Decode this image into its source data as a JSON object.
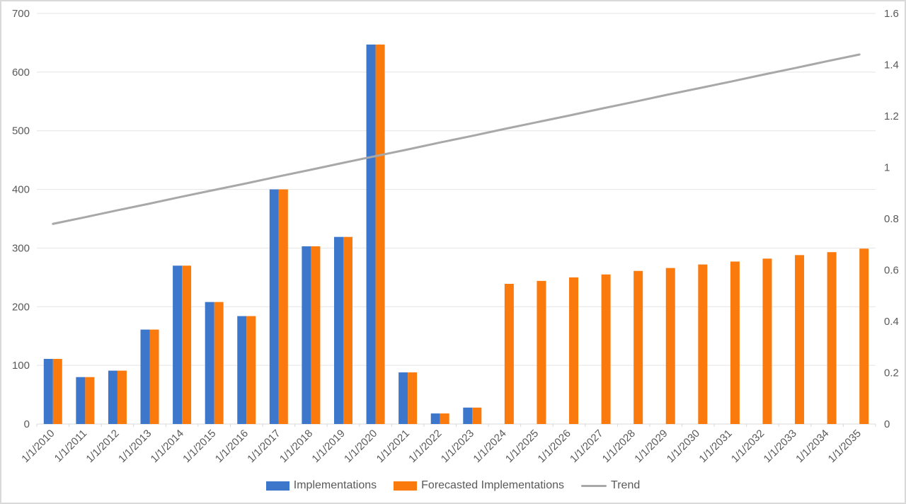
{
  "chart_data": {
    "type": "bar",
    "title": "",
    "categories": [
      "1/1/2010",
      "1/1/2011",
      "1/1/2012",
      "1/1/2013",
      "1/1/2014",
      "1/1/2015",
      "1/1/2016",
      "1/1/2017",
      "1/1/2018",
      "1/1/2019",
      "1/1/2020",
      "1/1/2021",
      "1/1/2022",
      "1/1/2023",
      "1/1/2024",
      "1/1/2025",
      "1/1/2026",
      "1/1/2027",
      "1/1/2028",
      "1/1/2029",
      "1/1/2030",
      "1/1/2031",
      "1/1/2032",
      "1/1/2033",
      "1/1/2034",
      "1/1/2035"
    ],
    "series": [
      {
        "name": "Implementations",
        "type": "bar",
        "axis": "left",
        "color": "#3C77CB",
        "values": [
          111,
          80,
          91,
          161,
          270,
          208,
          184,
          400,
          303,
          319,
          647,
          88,
          18,
          28,
          null,
          null,
          null,
          null,
          null,
          null,
          null,
          null,
          null,
          null,
          null,
          null
        ]
      },
      {
        "name": "Forecasted Implementations",
        "type": "bar",
        "axis": "left",
        "color": "#FA7A0E",
        "values": [
          111,
          80,
          91,
          161,
          270,
          208,
          184,
          400,
          303,
          319,
          647,
          88,
          18,
          28,
          239,
          244,
          250,
          255,
          261,
          266,
          272,
          277,
          282,
          288,
          293,
          299
        ]
      },
      {
        "name": "Trend",
        "type": "line",
        "axis": "right",
        "color": "#A8A8A8",
        "values": [
          0.78,
          0.806,
          0.833,
          0.859,
          0.886,
          0.912,
          0.938,
          0.965,
          0.991,
          1.018,
          1.044,
          1.07,
          1.097,
          1.123,
          1.15,
          1.176,
          1.202,
          1.229,
          1.255,
          1.282,
          1.308,
          1.334,
          1.361,
          1.387,
          1.414,
          1.44
        ]
      }
    ],
    "left_axis": {
      "min": 0,
      "max": 700,
      "step": 100,
      "tick_labels": [
        "0",
        "100",
        "200",
        "300",
        "400",
        "500",
        "600",
        "700"
      ]
    },
    "right_axis": {
      "min": 0,
      "max": 1.6,
      "step": 0.2,
      "tick_labels": [
        "0",
        "0.2",
        "0.4",
        "0.6",
        "0.8",
        "1",
        "1.2",
        "1.4",
        "1.6"
      ]
    },
    "legend": {
      "position": "bottom",
      "items": [
        "Implementations",
        "Forecasted Implementations",
        "Trend"
      ]
    },
    "grid": "horizontal",
    "colors": {
      "grid": "#E4E4E4",
      "axis_line": "#D9D9D9",
      "text": "#595959",
      "border": "#D9D9D9",
      "background": "#FFFFFF"
    }
  }
}
